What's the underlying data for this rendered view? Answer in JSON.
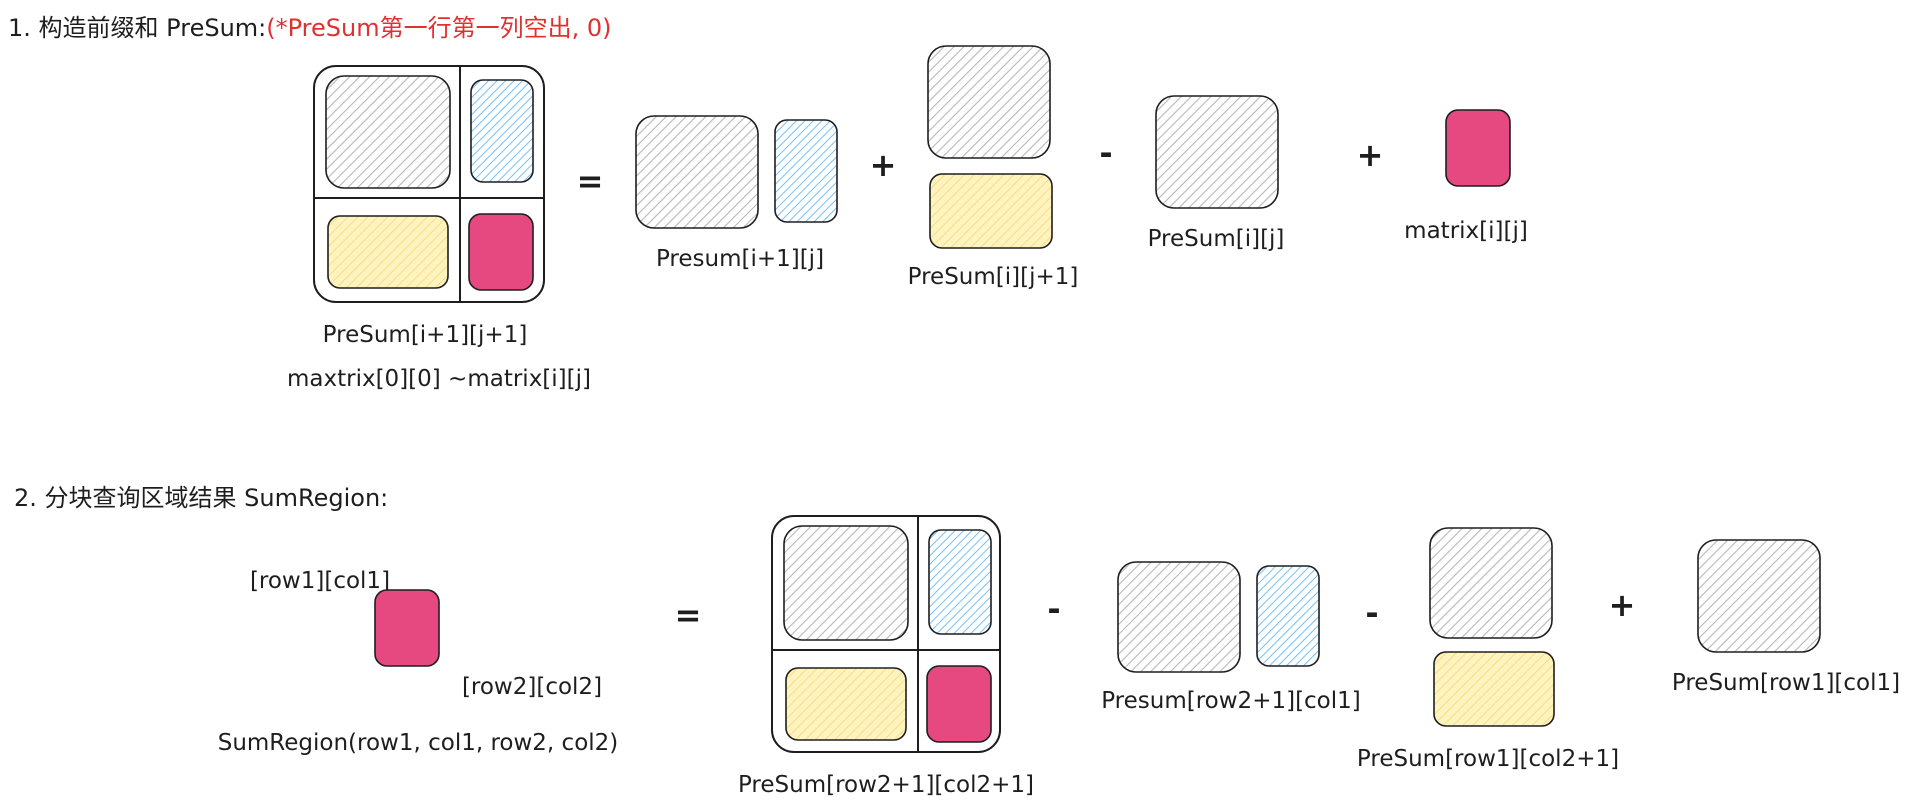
{
  "section1": {
    "number": "1.",
    "title": "构造前缀和 PreSum:",
    "note": "(*PreSum第一行第一列空出, 0)",
    "equation": {
      "lhs_label": "PreSum[i+1][j+1]",
      "lhs_sublabel": "maxtrix[0][0] ~matrix[i][j]",
      "op_equals": "=",
      "term1_label": "Presum[i+1][j]",
      "op_plus1": "+",
      "term2_label": "PreSum[i][j+1]",
      "op_minus": "-",
      "term3_label": "PreSum[i][j]",
      "op_plus2": "+",
      "term4_label": "matrix[i][j]"
    }
  },
  "section2": {
    "number": "2.",
    "title": "分块查询区域结果 SumRegion:",
    "equation": {
      "corner_top_label": "[row1][col1]",
      "corner_bottom_label": "[row2][col2]",
      "region_label": "SumRegion(row1, col1, row2, col2)",
      "op_equals": "=",
      "term0_label": "PreSum[row2+1][col2+1]",
      "op_minus1": "-",
      "term1_label": "Presum[row2+1][col1]",
      "op_minus2": "-",
      "term2_label": "PreSum[row1][col2+1]",
      "op_plus": "+",
      "term3_label": "PreSum[row1][col1]"
    }
  },
  "colors": {
    "gray": "#dcdcdc",
    "blue": "#a5d8ff",
    "yellow": "#ffec99",
    "pink": "#e64980",
    "note_red": "#e03131",
    "ink": "#1e1e1e"
  }
}
